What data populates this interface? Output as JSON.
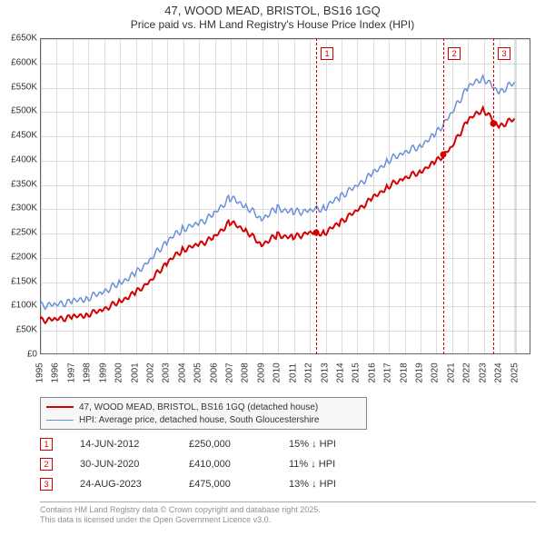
{
  "title1": "47, WOOD MEAD, BRISTOL, BS16 1GQ",
  "title2": "Price paid vs. HM Land Registry's House Price Index (HPI)",
  "chart": {
    "type": "line",
    "background": "#ffffff",
    "grid_color": "#dcdcdc",
    "border_color": "#666666",
    "xlim": [
      1995,
      2026
    ],
    "ylim": [
      0,
      650000
    ],
    "ytick_step": 50000,
    "yticks_labels": [
      "£0",
      "£50K",
      "£100K",
      "£150K",
      "£200K",
      "£250K",
      "£300K",
      "£350K",
      "£400K",
      "£450K",
      "£500K",
      "£550K",
      "£600K",
      "£650K"
    ],
    "xticks": [
      1995,
      1996,
      1997,
      1998,
      1999,
      2000,
      2001,
      2002,
      2003,
      2004,
      2005,
      2006,
      2007,
      2008,
      2009,
      2010,
      2011,
      2012,
      2013,
      2014,
      2015,
      2016,
      2017,
      2018,
      2019,
      2020,
      2021,
      2022,
      2023,
      2024,
      2025
    ],
    "series": [
      {
        "name": "property",
        "label": "47, WOOD MEAD, BRISTOL, BS16 1GQ (detached house)",
        "color": "#d40000",
        "width": 2,
        "points": [
          [
            1995,
            70000
          ],
          [
            1996,
            72000
          ],
          [
            1997,
            76000
          ],
          [
            1998,
            82000
          ],
          [
            1999,
            92000
          ],
          [
            2000,
            108000
          ],
          [
            2001,
            125000
          ],
          [
            2002,
            152000
          ],
          [
            2003,
            188000
          ],
          [
            2004,
            215000
          ],
          [
            2005,
            225000
          ],
          [
            2006,
            240000
          ],
          [
            2007,
            272000
          ],
          [
            2008,
            255000
          ],
          [
            2009,
            225000
          ],
          [
            2010,
            245000
          ],
          [
            2011,
            240000
          ],
          [
            2012,
            250000
          ],
          [
            2013,
            250000
          ],
          [
            2014,
            272000
          ],
          [
            2015,
            295000
          ],
          [
            2016,
            320000
          ],
          [
            2017,
            345000
          ],
          [
            2018,
            362000
          ],
          [
            2019,
            375000
          ],
          [
            2020,
            395000
          ],
          [
            2021,
            425000
          ],
          [
            2022,
            480000
          ],
          [
            2023,
            505000
          ],
          [
            2024,
            468000
          ],
          [
            2025,
            485000
          ]
        ]
      },
      {
        "name": "hpi",
        "label": "HPI: Average price, detached house, South Gloucestershire",
        "color": "#6a8fd9",
        "width": 1.5,
        "points": [
          [
            1995,
            100000
          ],
          [
            1996,
            102000
          ],
          [
            1997,
            108000
          ],
          [
            1998,
            116000
          ],
          [
            1999,
            128000
          ],
          [
            2000,
            146000
          ],
          [
            2001,
            164000
          ],
          [
            2002,
            196000
          ],
          [
            2003,
            232000
          ],
          [
            2004,
            258000
          ],
          [
            2005,
            268000
          ],
          [
            2006,
            288000
          ],
          [
            2007,
            322000
          ],
          [
            2008,
            305000
          ],
          [
            2009,
            278000
          ],
          [
            2010,
            300000
          ],
          [
            2011,
            292000
          ],
          [
            2012,
            295000
          ],
          [
            2013,
            302000
          ],
          [
            2014,
            325000
          ],
          [
            2015,
            346000
          ],
          [
            2016,
            370000
          ],
          [
            2017,
            398000
          ],
          [
            2018,
            415000
          ],
          [
            2019,
            428000
          ],
          [
            2020,
            452000
          ],
          [
            2021,
            495000
          ],
          [
            2022,
            548000
          ],
          [
            2023,
            570000
          ],
          [
            2024,
            538000
          ],
          [
            2025,
            560000
          ]
        ]
      }
    ],
    "events": [
      {
        "n": "1",
        "date": "14-JUN-2012",
        "x": 2012.45,
        "price_label": "£250,000",
        "price": 250000,
        "delta": "15% ↓ HPI",
        "color": "#d40000"
      },
      {
        "n": "2",
        "date": "30-JUN-2020",
        "x": 2020.5,
        "price_label": "£410,000",
        "price": 410000,
        "delta": "11% ↓ HPI",
        "color": "#d40000"
      },
      {
        "n": "3",
        "date": "24-AUG-2023",
        "x": 2023.65,
        "price_label": "£475,000",
        "price": 475000,
        "delta": "13% ↓ HPI",
        "color": "#d40000"
      }
    ],
    "ref_band": {
      "x": 2025.0,
      "color": "#9aa3b5"
    }
  },
  "legend_title": "",
  "footer1": "Contains HM Land Registry data © Crown copyright and database right 2025.",
  "footer2": "This data is licensed under the Open Government Licence v3.0."
}
